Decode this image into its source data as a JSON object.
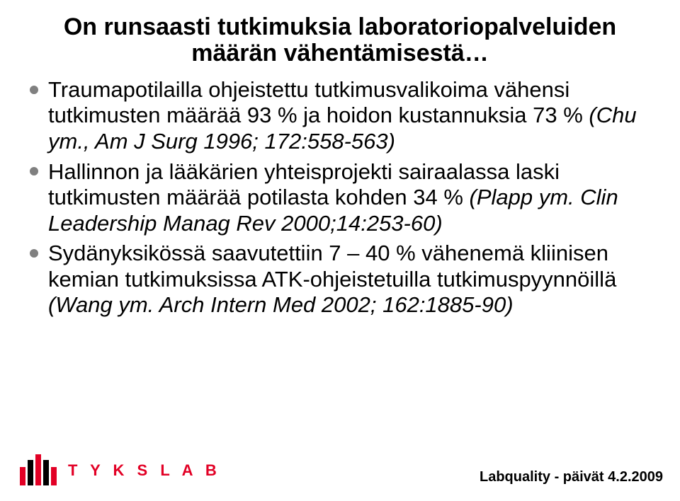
{
  "title": {
    "line1": "On runsaasti tutkimuksia laboratoriopalveluiden",
    "line2": "määrän vähentämisestä…",
    "fontsize": 34,
    "color": "#000000"
  },
  "bullets": [
    {
      "plain": "Traumapotilailla ohjeistettu tutkimusvalikoima vähensi tutkimusten määrää 93 % ja hoidon kustannuksia 73 % ",
      "ref": "(Chu ym., Am J Surg 1996; 172:558-563)"
    },
    {
      "plain": "Hallinnon ja lääkärien yhteisprojekti sairaalassa laski tutkimusten määrää potilasta kohden 34 % ",
      "ref": "(Plapp ym. Clin Leadership Manag Rev 2000;14:253-60)"
    },
    {
      "plain": "Sydänyksikössä saavutettiin 7 – 40 % vähenemä kliinisen kemian tutkimuksissa ATK-ohjeistetuilla tutkimuspyynnöillä ",
      "ref": "(Wang ym. Arch Intern Med 2002; 162:1885-90)"
    }
  ],
  "body_fontsize": 31,
  "bullet_color": "#808080",
  "logo": {
    "bar_colors": [
      "#e20025",
      "#000000",
      "#e20025",
      "#000000",
      "#e20025"
    ],
    "text": "T Y K S L A B",
    "text_color": "#e20025"
  },
  "footer": {
    "text": "Labquality - päivät 4.2.2009",
    "fontsize": 20,
    "color": "#000000"
  },
  "background_color": "#ffffff"
}
